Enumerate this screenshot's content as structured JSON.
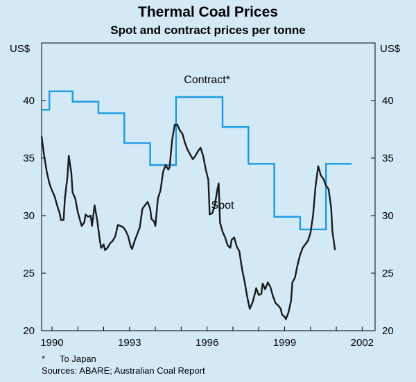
{
  "chart_data": {
    "type": "line",
    "title": "Thermal Coal Prices",
    "subtitle": "Spot and contract prices per tonne",
    "ylabel_left": "US$",
    "ylabel_right": "US$",
    "ylim": [
      20,
      45
    ],
    "yticks": [
      20,
      25,
      30,
      35,
      40
    ],
    "xlim": [
      1989.6,
      2002.5
    ],
    "xticks": [
      1990,
      1993,
      1996,
      1999,
      2002
    ],
    "xtick_labels": [
      "1990",
      "1993",
      "1996",
      "1999",
      "2002"
    ],
    "series": [
      {
        "name": "Contract*",
        "color": "#1a9be0",
        "step": true,
        "points": [
          [
            1989.6,
            39.2
          ],
          [
            1989.9,
            39.2
          ],
          [
            1989.9,
            40.8
          ],
          [
            1990.8,
            40.8
          ],
          [
            1990.8,
            39.9
          ],
          [
            1991.8,
            39.9
          ],
          [
            1991.8,
            38.9
          ],
          [
            1992.8,
            38.9
          ],
          [
            1992.8,
            36.3
          ],
          [
            1993.8,
            36.3
          ],
          [
            1993.8,
            34.4
          ],
          [
            1994.8,
            34.4
          ],
          [
            1994.8,
            40.3
          ],
          [
            1996.6,
            40.3
          ],
          [
            1996.6,
            37.7
          ],
          [
            1997.6,
            37.7
          ],
          [
            1997.6,
            34.5
          ],
          [
            1998.6,
            34.5
          ],
          [
            1998.6,
            29.9
          ],
          [
            1999.6,
            29.9
          ],
          [
            1999.6,
            28.8
          ],
          [
            2000.6,
            28.8
          ],
          [
            2000.6,
            34.5
          ],
          [
            2001.6,
            34.5
          ]
        ]
      },
      {
        "name": "Spot",
        "color": "#1a1a1a",
        "step": false,
        "points": [
          [
            1989.6,
            36.9
          ],
          [
            1989.7,
            35.2
          ],
          [
            1989.8,
            33.8
          ],
          [
            1989.9,
            32.8
          ],
          [
            1990.0,
            32.2
          ],
          [
            1990.1,
            31.7
          ],
          [
            1990.2,
            30.9
          ],
          [
            1990.3,
            30.2
          ],
          [
            1990.35,
            29.6
          ],
          [
            1990.45,
            29.6
          ],
          [
            1990.5,
            31.5
          ],
          [
            1990.6,
            33.4
          ],
          [
            1990.65,
            35.2
          ],
          [
            1990.75,
            33.7
          ],
          [
            1990.8,
            32.0
          ],
          [
            1990.9,
            31.5
          ],
          [
            1991.0,
            30.3
          ],
          [
            1991.1,
            29.5
          ],
          [
            1991.15,
            29.1
          ],
          [
            1991.25,
            29.4
          ],
          [
            1991.3,
            30.1
          ],
          [
            1991.4,
            29.9
          ],
          [
            1991.5,
            30.0
          ],
          [
            1991.55,
            29.1
          ],
          [
            1991.65,
            30.9
          ],
          [
            1991.75,
            29.6
          ],
          [
            1991.85,
            27.9
          ],
          [
            1991.9,
            27.2
          ],
          [
            1992.0,
            27.5
          ],
          [
            1992.05,
            27.0
          ],
          [
            1992.15,
            27.2
          ],
          [
            1992.25,
            27.6
          ],
          [
            1992.35,
            27.8
          ],
          [
            1992.45,
            28.2
          ],
          [
            1992.55,
            29.2
          ],
          [
            1992.65,
            29.1
          ],
          [
            1992.75,
            29.0
          ],
          [
            1992.85,
            28.7
          ],
          [
            1992.95,
            28.2
          ],
          [
            1993.05,
            27.3
          ],
          [
            1993.1,
            27.1
          ],
          [
            1993.2,
            27.8
          ],
          [
            1993.3,
            28.4
          ],
          [
            1993.4,
            29.0
          ],
          [
            1993.5,
            30.6
          ],
          [
            1993.6,
            30.9
          ],
          [
            1993.7,
            31.2
          ],
          [
            1993.8,
            30.6
          ],
          [
            1993.85,
            29.7
          ],
          [
            1993.95,
            29.5
          ],
          [
            1994.0,
            29.1
          ],
          [
            1994.1,
            31.5
          ],
          [
            1994.2,
            32.2
          ],
          [
            1994.3,
            33.8
          ],
          [
            1994.4,
            34.4
          ],
          [
            1994.5,
            34.0
          ],
          [
            1994.55,
            34.2
          ],
          [
            1994.65,
            36.6
          ],
          [
            1994.75,
            37.9
          ],
          [
            1994.85,
            37.9
          ],
          [
            1994.95,
            37.4
          ],
          [
            1995.05,
            37.1
          ],
          [
            1995.15,
            36.3
          ],
          [
            1995.25,
            35.7
          ],
          [
            1995.35,
            35.3
          ],
          [
            1995.45,
            34.9
          ],
          [
            1995.55,
            35.2
          ],
          [
            1995.65,
            35.6
          ],
          [
            1995.75,
            35.9
          ],
          [
            1995.85,
            35.2
          ],
          [
            1995.95,
            34.0
          ],
          [
            1996.05,
            33.1
          ],
          [
            1996.1,
            30.1
          ],
          [
            1996.2,
            30.2
          ],
          [
            1996.3,
            30.9
          ],
          [
            1996.4,
            32.3
          ],
          [
            1996.45,
            32.8
          ],
          [
            1996.5,
            29.4
          ],
          [
            1996.6,
            28.6
          ],
          [
            1996.7,
            28.1
          ],
          [
            1996.8,
            27.4
          ],
          [
            1996.9,
            27.2
          ],
          [
            1996.95,
            27.9
          ],
          [
            1997.05,
            28.1
          ],
          [
            1997.15,
            27.3
          ],
          [
            1997.25,
            26.9
          ],
          [
            1997.35,
            25.4
          ],
          [
            1997.45,
            24.3
          ],
          [
            1997.55,
            23.0
          ],
          [
            1997.65,
            21.9
          ],
          [
            1997.75,
            22.4
          ],
          [
            1997.85,
            23.2
          ],
          [
            1997.9,
            23.7
          ],
          [
            1998.0,
            23.1
          ],
          [
            1998.1,
            23.2
          ],
          [
            1998.15,
            24.1
          ],
          [
            1998.25,
            23.6
          ],
          [
            1998.35,
            24.2
          ],
          [
            1998.45,
            23.8
          ],
          [
            1998.55,
            23.0
          ],
          [
            1998.65,
            22.4
          ],
          [
            1998.75,
            22.2
          ],
          [
            1998.85,
            21.9
          ],
          [
            1998.9,
            21.4
          ],
          [
            1999.0,
            21.2
          ],
          [
            1999.05,
            21.0
          ],
          [
            1999.15,
            21.6
          ],
          [
            1999.25,
            22.6
          ],
          [
            1999.3,
            24.2
          ],
          [
            1999.4,
            24.6
          ],
          [
            1999.5,
            25.7
          ],
          [
            1999.6,
            26.6
          ],
          [
            1999.7,
            27.2
          ],
          [
            1999.8,
            27.5
          ],
          [
            1999.9,
            27.8
          ],
          [
            2000.0,
            28.5
          ],
          [
            2000.1,
            30.0
          ],
          [
            2000.2,
            32.6
          ],
          [
            2000.3,
            34.3
          ],
          [
            2000.4,
            33.5
          ],
          [
            2000.5,
            33.2
          ],
          [
            2000.6,
            32.6
          ],
          [
            2000.7,
            32.3
          ],
          [
            2000.8,
            30.7
          ],
          [
            2000.85,
            28.6
          ],
          [
            2000.95,
            27.0
          ]
        ]
      }
    ],
    "annotations": [
      {
        "text": "Contract*",
        "x": 1996.0,
        "y": 41.5
      },
      {
        "text": "Spot",
        "x": 1996.6,
        "y": 30.6
      }
    ]
  },
  "footnote": {
    "marker": "*",
    "text": "To Japan"
  },
  "sources": "Sources: ABARE; Australian Coal Report"
}
